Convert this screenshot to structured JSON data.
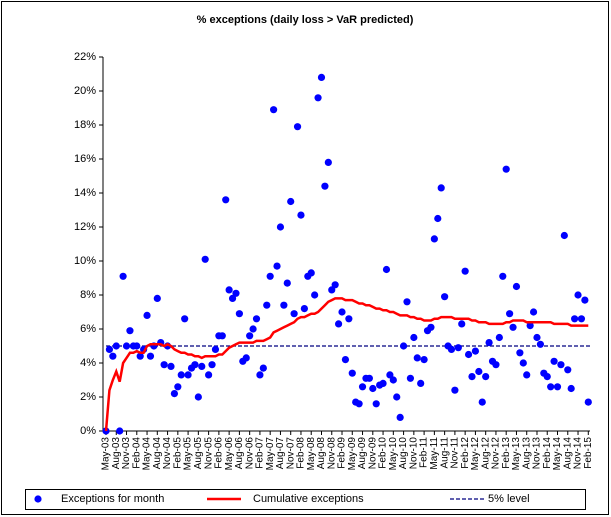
{
  "chart_data": {
    "type": "scatter-line",
    "title": "% exceptions (daily loss > VaR predicted)",
    "categories": [
      "May-03",
      null,
      null,
      "Aug-03",
      null,
      null,
      "Nov-03",
      null,
      null,
      "Feb-04",
      null,
      null,
      "May-04",
      null,
      null,
      "Aug-04",
      null,
      null,
      "Nov-04",
      null,
      null,
      "Feb-05",
      null,
      null,
      "May-05",
      null,
      null,
      "Aug-05",
      null,
      null,
      "Nov-05",
      null,
      null,
      "Feb-06",
      null,
      null,
      "May-06",
      null,
      null,
      "Aug-06",
      null,
      null,
      "Nov-06",
      null,
      null,
      "Feb-07",
      null,
      null,
      "May-07",
      null,
      null,
      "Aug-07",
      null,
      null,
      "Nov-07",
      null,
      null,
      "Feb-08",
      null,
      null,
      "May-08",
      null,
      null,
      "Aug-08",
      null,
      null,
      "Nov-08",
      null,
      null,
      "Feb-09",
      null,
      null,
      "May-09",
      null,
      null,
      "Aug-09",
      null,
      null,
      "Nov-09",
      null,
      null,
      "Feb-10",
      null,
      null,
      "May-10",
      null,
      null,
      "Aug-10",
      null,
      null,
      "Nov-10",
      null,
      null,
      "Feb-11",
      null,
      null,
      "May-11",
      null,
      null,
      "Aug-11",
      null,
      null,
      "Nov-11",
      null,
      null,
      "Feb-12",
      null,
      null,
      "May-12",
      null,
      null,
      "Aug-12",
      null,
      null,
      "Nov-12",
      null,
      null,
      "Feb-13",
      null,
      null,
      "May-13",
      null,
      null,
      "Aug-13",
      null,
      null,
      "Nov-13",
      null,
      null,
      "Feb-14",
      null,
      null,
      "May-14",
      null,
      null,
      "Aug-14",
      null,
      null,
      "Nov-14",
      null,
      null,
      "Feb-15"
    ],
    "series": [
      {
        "name": "Exceptions for month",
        "kind": "scatter",
        "color": "#0000ff",
        "values": [
          0,
          4.8,
          4.4,
          5.0,
          0,
          9.1,
          5.0,
          5.9,
          5.0,
          5.0,
          4.4,
          4.8,
          6.8,
          4.4,
          5.0,
          7.8,
          5.2,
          3.9,
          5.0,
          3.8,
          2.2,
          2.6,
          3.3,
          6.6,
          3.3,
          3.7,
          3.9,
          2.0,
          3.8,
          10.1,
          3.3,
          3.9,
          4.8,
          5.6,
          5.6,
          13.6,
          8.3,
          7.8,
          8.1,
          6.9,
          4.1,
          4.3,
          5.6,
          6.0,
          6.6,
          3.3,
          3.7,
          7.4,
          9.1,
          18.9,
          9.7,
          12.0,
          7.4,
          8.7,
          13.5,
          6.9,
          17.9,
          12.7,
          7.2,
          9.1,
          9.3,
          8.0,
          19.6,
          20.8,
          14.4,
          15.8,
          8.3,
          8.6,
          6.3,
          7.0,
          4.2,
          6.6,
          3.4,
          1.7,
          1.6,
          2.6,
          3.1,
          3.1,
          2.5,
          1.6,
          2.7,
          2.8,
          9.5,
          3.3,
          3.0,
          2.0,
          0.8,
          5.0,
          7.6,
          3.1,
          5.5,
          4.3,
          2.8,
          4.2,
          5.9,
          6.1,
          11.3,
          12.5,
          14.3,
          7.9,
          5.0,
          4.8,
          2.4,
          4.9,
          6.3,
          9.4,
          4.5,
          3.2,
          4.7,
          3.5,
          1.7,
          3.2,
          5.2,
          4.1,
          3.9,
          5.5,
          9.1,
          15.4,
          6.9,
          6.1,
          8.5,
          4.6,
          4.0,
          3.3,
          6.2,
          7.0,
          5.5,
          5.1,
          3.4,
          3.2,
          2.6,
          4.1,
          2.6,
          3.9,
          11.5,
          3.6,
          2.5,
          6.6,
          8.0,
          6.6,
          7.7,
          1.7
        ]
      },
      {
        "name": "Cumulative exceptions",
        "kind": "line",
        "color": "#ff0000",
        "values": [
          0,
          2.4,
          3.0,
          3.5,
          2.9,
          4.0,
          4.3,
          4.6,
          4.6,
          4.7,
          4.6,
          4.6,
          5.0,
          5.1,
          5.1,
          5.1,
          5.1,
          5.0,
          5.1,
          5.0,
          4.8,
          4.7,
          4.6,
          4.6,
          4.5,
          4.5,
          4.4,
          4.4,
          4.3,
          4.4,
          4.4,
          4.4,
          4.4,
          4.5,
          4.5,
          4.7,
          4.9,
          5.0,
          5.1,
          5.2,
          5.2,
          5.2,
          5.2,
          5.2,
          5.3,
          5.3,
          5.3,
          5.4,
          5.5,
          5.8,
          5.9,
          6.0,
          6.1,
          6.2,
          6.3,
          6.4,
          6.6,
          6.7,
          6.7,
          6.8,
          6.9,
          6.9,
          7.0,
          7.2,
          7.4,
          7.6,
          7.7,
          7.8,
          7.8,
          7.8,
          7.7,
          7.7,
          7.7,
          7.6,
          7.5,
          7.5,
          7.4,
          7.4,
          7.3,
          7.2,
          7.2,
          7.1,
          7.1,
          7.0,
          7.0,
          6.9,
          6.8,
          6.8,
          6.8,
          6.7,
          6.7,
          6.6,
          6.6,
          6.5,
          6.5,
          6.5,
          6.6,
          6.6,
          6.7,
          6.7,
          6.7,
          6.7,
          6.6,
          6.6,
          6.6,
          6.6,
          6.6,
          6.5,
          6.5,
          6.4,
          6.4,
          6.4,
          6.3,
          6.3,
          6.3,
          6.3,
          6.3,
          6.4,
          6.4,
          6.5,
          6.5,
          6.5,
          6.5,
          6.4,
          6.4,
          6.4,
          6.4,
          6.4,
          6.4,
          6.4,
          6.4,
          6.3,
          6.3,
          6.3,
          6.3,
          6.3,
          6.2,
          6.2,
          6.2,
          6.2,
          6.2,
          6.2
        ]
      }
    ],
    "reference_line": {
      "name": "5% level",
      "value": 5,
      "color": "#000080"
    },
    "ylim": [
      0,
      22
    ],
    "yticks": [
      {
        "value": 0,
        "label": "0%"
      },
      {
        "value": 2,
        "label": "2%"
      },
      {
        "value": 4,
        "label": "4%"
      },
      {
        "value": 6,
        "label": "6%"
      },
      {
        "value": 8,
        "label": "8%"
      },
      {
        "value": 10,
        "label": "10%"
      },
      {
        "value": 12,
        "label": "12%"
      },
      {
        "value": 14,
        "label": "14%"
      },
      {
        "value": 16,
        "label": "16%"
      },
      {
        "value": 18,
        "label": "18%"
      },
      {
        "value": 20,
        "label": "20%"
      },
      {
        "value": 22,
        "label": "22%"
      }
    ],
    "legend": "bottom"
  }
}
